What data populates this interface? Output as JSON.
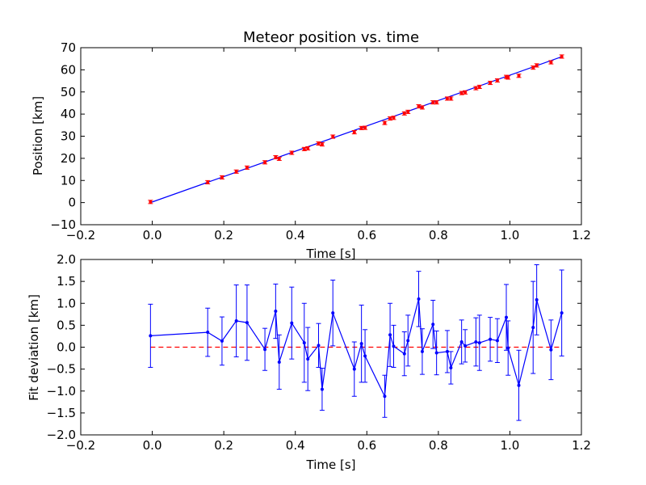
{
  "chart_data": [
    {
      "type": "scatter",
      "title": "Meteor position vs. time",
      "xlabel": "Time [s]",
      "ylabel": "Position [km]",
      "xlim": [
        -0.2,
        1.2
      ],
      "ylim": [
        -10,
        70
      ],
      "xticks": [
        -0.2,
        0.0,
        0.2,
        0.4,
        0.6,
        0.8,
        1.0,
        1.2
      ],
      "xtick_labels": [
        "−0.2",
        "0.0",
        "0.2",
        "0.4",
        "0.6",
        "0.8",
        "1.0",
        "1.2"
      ],
      "yticks": [
        -10,
        0,
        10,
        20,
        30,
        40,
        50,
        60,
        70
      ],
      "ytick_labels": [
        "−10",
        "0",
        "10",
        "20",
        "30",
        "40",
        "50",
        "60",
        "70"
      ],
      "grid": false,
      "colors": {
        "points": "#ff0000",
        "fit_line": "#0000ff"
      },
      "fit_line": {
        "x": [
          -0.005,
          1.145
        ],
        "y": [
          0.0,
          65.9
        ]
      },
      "series": [
        {
          "x": [
            -0.005,
            0.155,
            0.195,
            0.235,
            0.265,
            0.315,
            0.345,
            0.355,
            0.39,
            0.425,
            0.435,
            0.465,
            0.475,
            0.505,
            0.565,
            0.585,
            0.595,
            0.65,
            0.665,
            0.675,
            0.705,
            0.715,
            0.745,
            0.755,
            0.785,
            0.795,
            0.825,
            0.835,
            0.865,
            0.875,
            0.905,
            0.915,
            0.945,
            0.965,
            0.99,
            0.995,
            1.025,
            1.065,
            1.075,
            1.115,
            1.145
          ],
          "y": [
            0.3,
            9.2,
            11.4,
            14.0,
            15.8,
            18.2,
            20.5,
            19.8,
            22.5,
            24.2,
            24.5,
            26.7,
            26.3,
            29.8,
            31.8,
            33.7,
            33.8,
            36.0,
            38.0,
            38.3,
            40.3,
            41.0,
            43.5,
            43.0,
            45.3,
            45.3,
            47.0,
            47.0,
            49.5,
            49.8,
            51.7,
            52.3,
            54.1,
            55.2,
            56.8,
            56.5,
            57.3,
            61.0,
            62.0,
            63.4,
            66.0
          ],
          "yerr": 0.75
        }
      ]
    },
    {
      "type": "line",
      "xlabel": "Time [s]",
      "ylabel": "Fit deviation [km]",
      "xlim": [
        -0.2,
        1.2
      ],
      "ylim": [
        -2.0,
        2.0
      ],
      "xticks": [
        -0.2,
        0.0,
        0.2,
        0.4,
        0.6,
        0.8,
        1.0,
        1.2
      ],
      "xtick_labels": [
        "−0.2",
        "0.0",
        "0.2",
        "0.4",
        "0.6",
        "0.8",
        "1.0",
        "1.2"
      ],
      "yticks": [
        -2.0,
        -1.5,
        -1.0,
        -0.5,
        0.0,
        0.5,
        1.0,
        1.5,
        2.0
      ],
      "ytick_labels": [
        "−2.0",
        "−1.5",
        "−1.0",
        "−0.5",
        "0.0",
        "0.5",
        "1.0",
        "1.5",
        "2.0"
      ],
      "grid": false,
      "colors": {
        "line": "#0000ff",
        "zero_line": "#ff0000"
      },
      "reference_line": {
        "y": 0,
        "style": "dashed"
      },
      "series": [
        {
          "x": [
            -0.005,
            0.155,
            0.195,
            0.235,
            0.265,
            0.315,
            0.345,
            0.355,
            0.39,
            0.425,
            0.435,
            0.465,
            0.475,
            0.505,
            0.565,
            0.585,
            0.595,
            0.65,
            0.665,
            0.675,
            0.705,
            0.715,
            0.745,
            0.755,
            0.785,
            0.795,
            0.825,
            0.835,
            0.865,
            0.875,
            0.905,
            0.915,
            0.945,
            0.965,
            0.99,
            0.995,
            1.025,
            1.065,
            1.075,
            1.115,
            1.145
          ],
          "y": [
            0.26,
            0.34,
            0.14,
            0.6,
            0.56,
            -0.05,
            0.82,
            -0.34,
            0.55,
            0.1,
            -0.27,
            0.04,
            -0.96,
            0.78,
            -0.5,
            0.08,
            -0.2,
            -1.12,
            0.28,
            0.02,
            -0.15,
            0.15,
            1.1,
            -0.1,
            0.52,
            -0.13,
            -0.1,
            -0.47,
            0.12,
            0.03,
            0.12,
            0.1,
            0.18,
            0.15,
            0.68,
            -0.02,
            -0.87,
            0.45,
            1.08,
            -0.06,
            0.78
          ],
          "yerr": [
            0.72,
            0.55,
            0.55,
            0.82,
            0.86,
            0.48,
            0.62,
            0.62,
            0.82,
            0.9,
            0.72,
            0.5,
            0.48,
            0.75,
            0.62,
            0.88,
            0.6,
            0.48,
            0.72,
            0.48,
            0.5,
            0.58,
            0.63,
            0.52,
            0.55,
            0.5,
            0.48,
            0.37,
            0.5,
            0.37,
            0.55,
            0.63,
            0.5,
            0.5,
            0.75,
            0.62,
            0.8,
            1.05,
            0.8,
            0.68,
            0.98
          ]
        }
      ]
    }
  ]
}
